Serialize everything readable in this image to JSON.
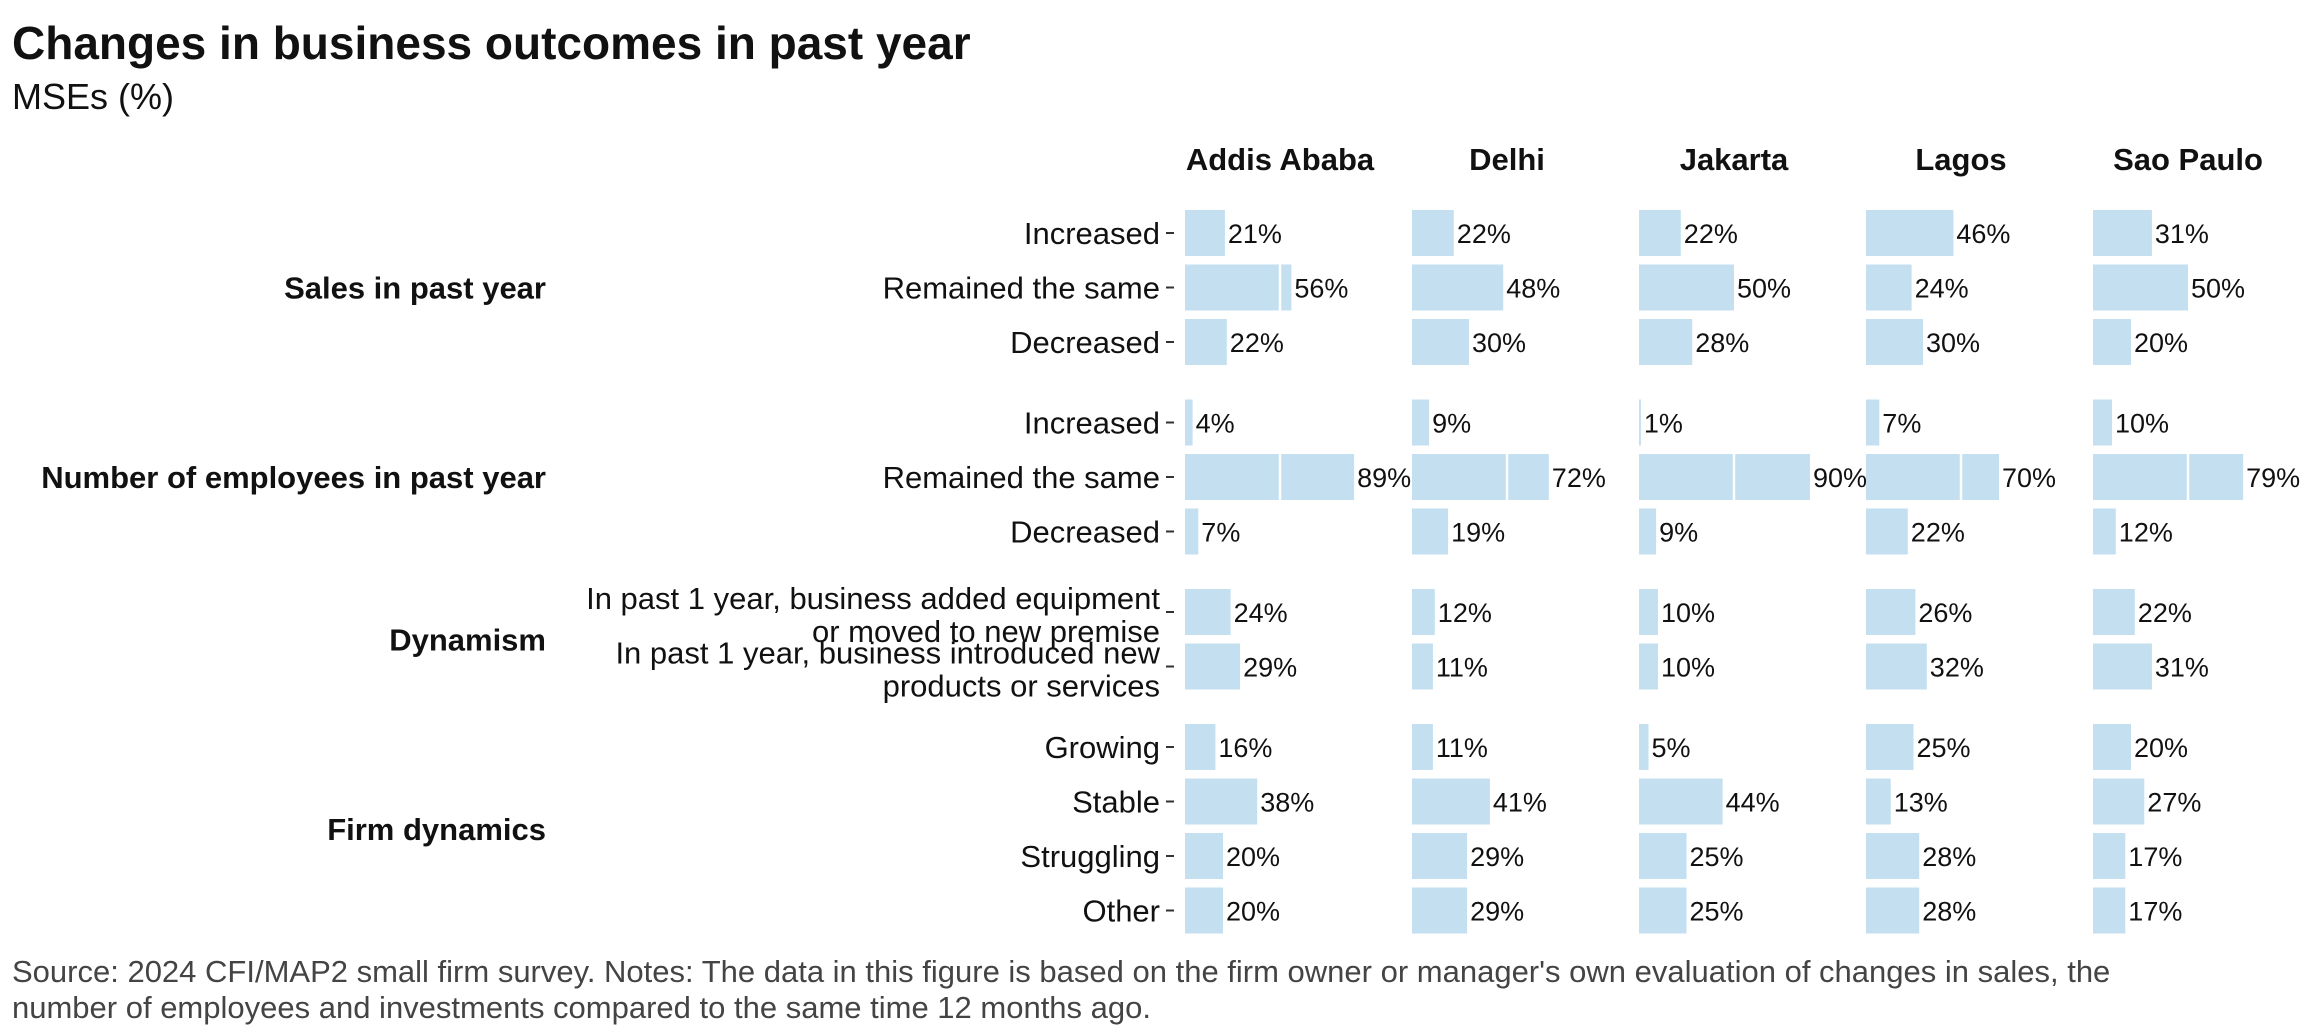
{
  "chart_data": {
    "type": "bar",
    "orientation": "horizontal",
    "title": "Changes in business outcomes in past year",
    "subtitle": "MSEs (%)",
    "caption": "Source: 2024 CFI/MAP2 small firm survey. Notes: The data in this figure is based on the firm owner or manager's own evaluation of changes in sales, the number of employees and investments compared to the same time 12 months ago.",
    "facets": [
      "Addis Ababa",
      "Delhi",
      "Jakarta",
      "Lagos",
      "Sao Paulo"
    ],
    "xlim": [
      0,
      100
    ],
    "grid_at": [
      50
    ],
    "bar_color": "#c3dff0",
    "groups": [
      {
        "label": "Sales in past year",
        "categories": [
          {
            "label": [
              "Increased"
            ],
            "values": [
              21,
              22,
              22,
              46,
              31
            ],
            "value_labels": [
              "21%",
              "22%",
              "22%",
              "46%",
              "31%"
            ]
          },
          {
            "label": [
              "Remained the same"
            ],
            "values": [
              56,
              48,
              50,
              24,
              50
            ],
            "value_labels": [
              "56%",
              "48%",
              "50%",
              "24%",
              "50%"
            ]
          },
          {
            "label": [
              "Decreased"
            ],
            "values": [
              22,
              30,
              28,
              30,
              20
            ],
            "value_labels": [
              "22%",
              "30%",
              "28%",
              "30%",
              "20%"
            ]
          }
        ]
      },
      {
        "label": "Number of employees in past year",
        "categories": [
          {
            "label": [
              "Increased"
            ],
            "values": [
              4,
              9,
              1,
              7,
              10
            ],
            "value_labels": [
              "4%",
              "9%",
              "1%",
              "7%",
              "10%"
            ]
          },
          {
            "label": [
              "Remained the same"
            ],
            "values": [
              89,
              72,
              90,
              70,
              79
            ],
            "value_labels": [
              "89%",
              "72%",
              "90%",
              "70%",
              "79%"
            ]
          },
          {
            "label": [
              "Decreased"
            ],
            "values": [
              7,
              19,
              9,
              22,
              12
            ],
            "value_labels": [
              "7%",
              "19%",
              "9%",
              "22%",
              "12%"
            ]
          }
        ]
      },
      {
        "label": "Dynamism",
        "categories": [
          {
            "label": [
              "In past 1 year, business added equipment",
              "or moved to new premise"
            ],
            "values": [
              24,
              12,
              10,
              26,
              22
            ],
            "value_labels": [
              "24%",
              "12%",
              "10%",
              "26%",
              "22%"
            ]
          },
          {
            "label": [
              "In past 1 year, business introduced new",
              "products or services"
            ],
            "values": [
              29,
              11,
              10,
              32,
              31
            ],
            "value_labels": [
              "29%",
              "11%",
              "10%",
              "32%",
              "31%"
            ]
          }
        ]
      },
      {
        "label": "Firm dynamics",
        "categories": [
          {
            "label": [
              "Growing"
            ],
            "values": [
              16,
              11,
              5,
              25,
              20
            ],
            "value_labels": [
              "16%",
              "11%",
              "5%",
              "25%",
              "20%"
            ]
          },
          {
            "label": [
              "Stable"
            ],
            "values": [
              38,
              41,
              44,
              13,
              27
            ],
            "value_labels": [
              "38%",
              "41%",
              "44%",
              "13%",
              "27%"
            ]
          },
          {
            "label": [
              "Struggling"
            ],
            "values": [
              20,
              29,
              25,
              28,
              17
            ],
            "value_labels": [
              "20%",
              "29%",
              "25%",
              "28%",
              "17%"
            ]
          },
          {
            "label": [
              "Other"
            ],
            "values": [
              20,
              29,
              25,
              28,
              17
            ],
            "value_labels": [
              "20%",
              "29%",
              "25%",
              "28%",
              "17%"
            ]
          }
        ]
      }
    ]
  }
}
